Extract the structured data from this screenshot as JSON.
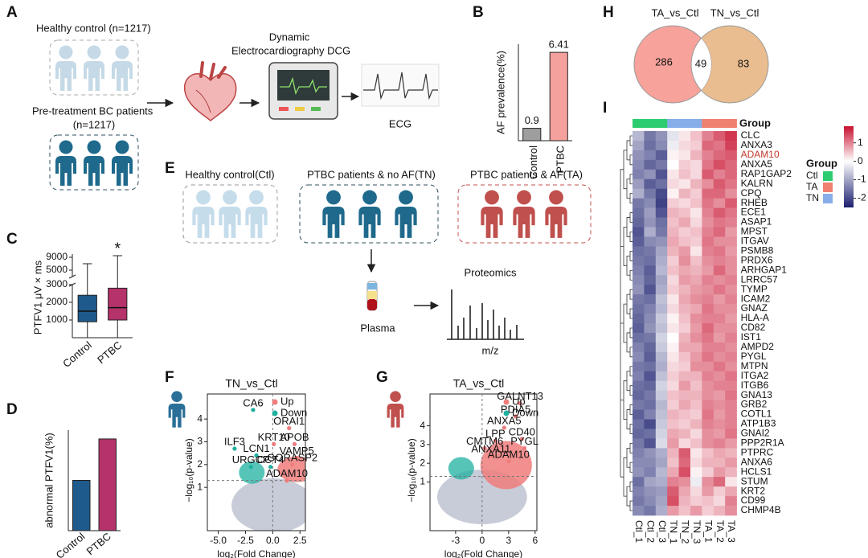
{
  "diagram_a": {
    "label": "A",
    "healthy": "Healthy control (n=1217)",
    "healthy_color": "#c5d9e6",
    "patients": "Pre-treatment BC patients",
    "patients_n": "(n=1217)",
    "patients_color": "#1f6a8c",
    "device": [
      "Dynamic",
      "Electrocardiography DCG"
    ],
    "ecg": "ECG"
  },
  "diagram_e": {
    "label": "E",
    "groups": [
      {
        "name": "Healthy control(Ctl)",
        "color": "#c5dceb",
        "border": "#9a9a9a"
      },
      {
        "name": "PTBC patients & no AF(TN)",
        "color": "#1f6a8c",
        "border": "#2f4f5f"
      },
      {
        "name": "PTBC patients & AF(TA)",
        "color": "#c0504d",
        "border": "#c0504d"
      }
    ],
    "proteomics": "Proteomics",
    "plasma": "Plasma",
    "axis": "m/z"
  },
  "chart_data": [
    {
      "type": "bar",
      "label": "B",
      "ylabel": "AF prevalence(%)",
      "categories": [
        "Control",
        "PTBC"
      ],
      "values": [
        0.9,
        6.41
      ],
      "colors": [
        "#9e9e9e",
        "#f4a09c"
      ],
      "ylim": [
        0,
        7
      ],
      "show_values": true
    },
    {
      "type": "box",
      "label": "C",
      "ylabel": "PTFV1 μV × ms",
      "categories": [
        "Control",
        "PTBC"
      ],
      "colors": [
        "#1f5a8c",
        "#b5336a"
      ],
      "boxes": [
        {
          "min": 0,
          "q1": 900,
          "median": 1500,
          "q3": 2400,
          "max": 7000
        },
        {
          "min": 0,
          "q1": 1000,
          "median": 1700,
          "q3": 2800,
          "max": 9500
        }
      ],
      "ylim_lower": [
        0,
        3000
      ],
      "ylim_upper": [
        3000,
        10000
      ],
      "yticks": [
        1000,
        2000,
        3000,
        5000,
        9000
      ],
      "annotation": "*"
    },
    {
      "type": "bar",
      "label": "D",
      "ylabel": "abnormal PTFV1(%)",
      "categories": [
        "Control",
        "PTBC"
      ],
      "values": [
        4,
        7.3
      ],
      "colors": [
        "#1f5a8c",
        "#b5336a"
      ],
      "ylim": [
        0,
        8
      ],
      "show_values": false
    },
    {
      "type": "volcano",
      "label": "F",
      "title": "TN_vs_Ctl",
      "xlabel": "log₂(Fold Change)",
      "ylabel": "−log₁₀(p-value)",
      "icon_color": "#2a6f97",
      "xlim": [
        -6,
        3
      ],
      "ylim": [
        -0.9,
        5.1
      ],
      "xticks": [
        {
          "value": -5,
          "label": "-5.0"
        },
        {
          "value": -2.5,
          "label": "-2.5"
        },
        {
          "value": 0,
          "label": "0.0"
        },
        {
          "value": 2.5,
          "label": "2.5"
        }
      ],
      "yticks": [
        1,
        2,
        3,
        4
      ],
      "hline": 1.3,
      "vline": 0,
      "legend": [
        {
          "name": "Up",
          "color": "#f07c7c"
        },
        {
          "name": "Down",
          "color": "#1fb0a0"
        }
      ],
      "points": {
        "labels": [
          "CA6",
          "ORAI1",
          "APOB",
          "KRT10",
          "ILF3",
          "LCN1",
          "VAMP5",
          "URGCP",
          "CCT4",
          "GORASP2",
          "ADAM10"
        ],
        "x": [
          -1.8,
          1.5,
          2.0,
          0.1,
          -3.5,
          -1.5,
          2.2,
          -2.0,
          -0.2,
          1.8,
          1.3
        ],
        "y": [
          4.4,
          3.6,
          2.9,
          2.9,
          2.7,
          2.4,
          2.3,
          1.9,
          1.9,
          2.0,
          1.3
        ]
      }
    },
    {
      "type": "volcano",
      "label": "G",
      "title": "TA_vs_Ctl",
      "xlabel": "log₂(Fold Change)",
      "ylabel": "−log₁₀(p-value)",
      "icon_color": "#c0504d",
      "xlim": [
        -5.9,
        6.2
      ],
      "ylim": [
        -1.6,
        5.7
      ],
      "xticks": [
        -3,
        0,
        3,
        6
      ],
      "yticks": [
        1,
        2,
        3,
        4
      ],
      "hline": 1.3,
      "vline": 0,
      "legend": [
        {
          "name": "Up",
          "color": "#f07c7c"
        },
        {
          "name": "Down",
          "color": "#1fb0a0"
        }
      ],
      "points": {
        "labels": [
          "GALNT13",
          "PDIA5",
          "ANXA5",
          "LPP",
          "CD40",
          "CMTM6",
          "PYGL",
          "ANXA11",
          "ADAM10"
        ],
        "x": [
          4.3,
          3.8,
          2.5,
          1.5,
          4.5,
          0.3,
          4.8,
          1.0,
          3.0
        ],
        "y": [
          5.2,
          4.5,
          3.9,
          3.2,
          3.3,
          2.8,
          2.8,
          2.4,
          2.1
        ]
      }
    },
    {
      "type": "venn",
      "label": "H",
      "sets": [
        {
          "name": "TA_vs_Ctl",
          "color": "#f7a29a",
          "only": 286
        },
        {
          "name": "TN_vs_Ctl",
          "color": "#e9bd90",
          "only": 83
        }
      ],
      "overlap": 49
    },
    {
      "type": "heatmap",
      "label": "I",
      "group_title": "Group",
      "highlight_row": "ADAM10",
      "highlight_color": "#c0392b",
      "groups": [
        {
          "name": "Ctl",
          "color": "#2ecc71"
        },
        {
          "name": "TA",
          "color": "#f08070"
        },
        {
          "name": "TN",
          "color": "#87aee8"
        }
      ],
      "columns": [
        "Ctl_1",
        "Ctl_2",
        "Ctl_3",
        "TN_1",
        "TN_2",
        "TN_3",
        "TA_1",
        "TA_2",
        "TA_3"
      ],
      "column_groups": [
        "Ctl",
        "Ctl",
        "Ctl",
        "TN",
        "TN",
        "TN",
        "TA",
        "TA",
        "TA"
      ],
      "rows": [
        "CLC",
        "ANXA3",
        "ADAM10",
        "ANXA5",
        "RAP1GAP2",
        "KALRN",
        "CPQ",
        "RHEB",
        "ECE1",
        "ASAP1",
        "MPST",
        "ITGAV",
        "PSMB8",
        "PRDX6",
        "ARHGAP1",
        "LRRC57",
        "TYMP",
        "ICAM2",
        "GNAZ",
        "HLA-A",
        "CD82",
        "IST1",
        "AMPD2",
        "PYGL",
        "MTPN",
        "ITGA2",
        "ITGB6",
        "GNA13",
        "GRB2",
        "COTL1",
        "ATP1B3",
        "GNAI2",
        "PPP2R1A",
        "PTPRC",
        "ANXA6",
        "HCLS1",
        "STUM",
        "KRT2",
        "CD99",
        "CHMP4B"
      ],
      "values": [
        [
          -0.8,
          -1.5,
          -1.2,
          -0.3,
          0.2,
          0.5,
          1.0,
          1.3,
          1.6
        ],
        [
          -1.0,
          -1.6,
          -1.3,
          -0.2,
          0.3,
          0.4,
          1.2,
          1.1,
          1.5
        ],
        [
          -1.2,
          -1.4,
          -1.8,
          0.1,
          0.2,
          0.6,
          1.0,
          1.2,
          1.3
        ],
        [
          -1.3,
          -1.7,
          -1.5,
          0.0,
          0.4,
          0.3,
          1.1,
          1.4,
          1.2
        ],
        [
          -1.4,
          -1.2,
          -1.9,
          0.2,
          0.5,
          0.3,
          1.3,
          1.0,
          1.2
        ],
        [
          -1.1,
          -1.8,
          -1.6,
          0.3,
          0.2,
          0.6,
          0.9,
          1.3,
          1.1
        ],
        [
          -0.9,
          -1.5,
          -2.0,
          0.1,
          0.6,
          0.4,
          1.2,
          1.2,
          0.9
        ],
        [
          -1.5,
          -1.3,
          -2.1,
          0.4,
          0.3,
          0.5,
          1.1,
          0.9,
          1.3
        ],
        [
          -1.6,
          -1.1,
          -1.9,
          0.6,
          0.5,
          0.2,
          1.0,
          1.3,
          1.1
        ],
        [
          -1.7,
          -1.2,
          -1.6,
          0.5,
          0.7,
          0.3,
          0.9,
          1.1,
          1.0
        ],
        [
          -1.9,
          -0.9,
          -1.5,
          0.6,
          0.4,
          0.5,
          1.0,
          1.2,
          0.8
        ],
        [
          -1.8,
          -1.3,
          -1.2,
          0.7,
          0.5,
          0.4,
          1.1,
          0.9,
          0.9
        ],
        [
          -1.6,
          -1.5,
          -1.0,
          0.6,
          0.8,
          0.2,
          1.0,
          1.1,
          0.8
        ],
        [
          -1.5,
          -1.6,
          -0.9,
          0.4,
          0.9,
          0.5,
          0.9,
          1.0,
          0.9
        ],
        [
          -1.4,
          -1.8,
          -0.8,
          0.5,
          0.7,
          0.6,
          0.8,
          1.2,
          0.9
        ],
        [
          -1.3,
          -1.7,
          -1.0,
          0.3,
          0.8,
          0.7,
          1.0,
          0.9,
          1.0
        ],
        [
          -1.2,
          -1.9,
          -0.9,
          0.4,
          0.6,
          0.8,
          0.9,
          1.1,
          0.9
        ],
        [
          -1.5,
          -1.6,
          -0.7,
          0.2,
          0.7,
          0.9,
          1.0,
          0.8,
          1.0
        ],
        [
          -1.6,
          -1.4,
          -0.8,
          0.3,
          0.6,
          0.7,
          1.1,
          0.9,
          0.9
        ],
        [
          -1.7,
          -1.3,
          -0.6,
          0.1,
          0.5,
          0.9,
          1.0,
          1.0,
          0.8
        ],
        [
          -1.8,
          -1.2,
          -0.7,
          0.2,
          0.4,
          0.8,
          1.2,
          0.9,
          0.9
        ],
        [
          -1.6,
          -1.5,
          -0.5,
          0.0,
          0.6,
          0.9,
          1.1,
          0.8,
          1.0
        ],
        [
          -1.4,
          -1.7,
          -0.6,
          0.1,
          0.7,
          0.7,
          1.0,
          1.0,
          0.9
        ],
        [
          -1.3,
          -1.8,
          -0.8,
          0.2,
          0.5,
          0.8,
          1.1,
          0.9,
          1.0
        ],
        [
          -1.5,
          -1.6,
          -0.9,
          0.3,
          0.4,
          0.9,
          0.9,
          1.1,
          0.9
        ],
        [
          -1.4,
          -1.9,
          -0.7,
          0.4,
          0.6,
          0.6,
          1.0,
          0.9,
          1.1
        ],
        [
          -1.6,
          -1.7,
          -0.5,
          0.3,
          0.8,
          0.5,
          0.9,
          1.0,
          1.0
        ],
        [
          -1.7,
          -1.5,
          -0.6,
          0.5,
          0.6,
          0.6,
          0.9,
          0.8,
          1.1
        ],
        [
          -1.5,
          -1.6,
          -0.8,
          0.4,
          0.7,
          0.5,
          1.0,
          0.9,
          1.0
        ],
        [
          -1.8,
          -1.4,
          -0.7,
          0.6,
          0.5,
          0.4,
          1.1,
          0.8,
          1.0
        ],
        [
          -1.6,
          -2.0,
          -0.6,
          0.5,
          0.4,
          0.6,
          1.0,
          0.9,
          1.0
        ],
        [
          -1.7,
          -1.6,
          -0.5,
          0.7,
          0.6,
          0.3,
          0.9,
          0.8,
          1.1
        ],
        [
          -1.5,
          -1.9,
          -0.4,
          0.8,
          0.3,
          0.5,
          0.9,
          1.0,
          0.8
        ],
        [
          -1.4,
          -1.2,
          -0.9,
          0.6,
          1.3,
          0.2,
          0.5,
          0.7,
          0.6
        ],
        [
          -1.3,
          -1.3,
          -1.0,
          0.5,
          1.2,
          0.3,
          0.6,
          0.6,
          0.8
        ],
        [
          -1.2,
          -1.4,
          -0.8,
          0.7,
          1.4,
          0.1,
          0.4,
          0.8,
          0.6
        ],
        [
          -1.6,
          -1.0,
          -0.9,
          1.0,
          0.9,
          -0.2,
          0.9,
          1.2,
          0.2
        ],
        [
          -1.4,
          -1.2,
          -1.1,
          1.3,
          0.7,
          0.3,
          0.8,
          0.4,
          0.7
        ],
        [
          -1.5,
          -1.3,
          -1.0,
          1.4,
          0.6,
          0.4,
          0.5,
          0.3,
          1.0
        ],
        [
          -1.3,
          -1.5,
          -0.9,
          0.8,
          0.5,
          0.8,
          0.4,
          0.6,
          0.9
        ]
      ],
      "colorbar": {
        "ylim": [
          -2.5,
          1.9
        ],
        "ticks": [
          1,
          0,
          -1,
          -2
        ],
        "low": "#1b1f6e",
        "mid": "#ffffff",
        "high": "#c8102e"
      }
    }
  ]
}
